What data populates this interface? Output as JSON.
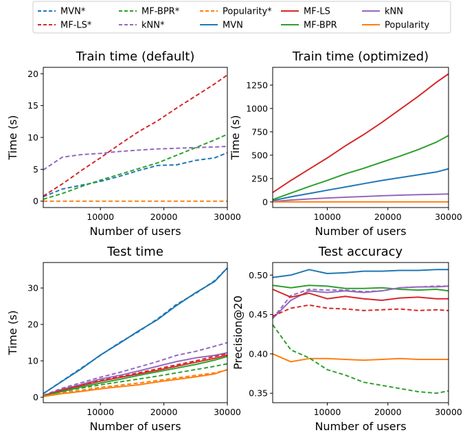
{
  "legend": {
    "placement": "top",
    "entries": [
      {
        "label": "MVN*",
        "color": "#1f77b4",
        "dash": true
      },
      {
        "label": "MF-BPR*",
        "color": "#2ca02c",
        "dash": true
      },
      {
        "label": "Popularity*",
        "color": "#ff7f0e",
        "dash": true
      },
      {
        "label": "MF-LS",
        "color": "#d62728",
        "dash": false
      },
      {
        "label": "kNN",
        "color": "#9467bd",
        "dash": false
      },
      {
        "label": "MF-LS*",
        "color": "#d62728",
        "dash": true
      },
      {
        "label": "kNN*",
        "color": "#9467bd",
        "dash": true
      },
      {
        "label": "MVN",
        "color": "#1f77b4",
        "dash": false
      },
      {
        "label": "MF-BPR",
        "color": "#2ca02c",
        "dash": false
      },
      {
        "label": "Popularity",
        "color": "#ff7f0e",
        "dash": false
      }
    ]
  },
  "chart_data": [
    {
      "type": "line",
      "title": "Train time (default)",
      "xlabel": "Number of users",
      "ylabel": "Time (s)",
      "xlim": [
        1000,
        30000
      ],
      "ylim": [
        -1,
        21
      ],
      "xticks": [
        10000,
        20000,
        30000
      ],
      "yticks": [
        0,
        5,
        10,
        15,
        20
      ],
      "x": [
        1000,
        4000,
        7000,
        10000,
        13000,
        16000,
        19000,
        22000,
        25000,
        28000,
        30000
      ],
      "series": [
        {
          "name": "MVN*",
          "color": "#1f77b4",
          "dash": true,
          "values": [
            0.7,
            1.9,
            2.5,
            3.1,
            3.9,
            4.8,
            5.6,
            5.7,
            6.4,
            6.8,
            7.6
          ]
        },
        {
          "name": "MF-LS*",
          "color": "#d62728",
          "dash": true,
          "values": [
            0.8,
            2.7,
            4.8,
            6.8,
            8.9,
            10.9,
            12.6,
            14.6,
            16.5,
            18.4,
            19.8
          ]
        },
        {
          "name": "MF-BPR*",
          "color": "#2ca02c",
          "dash": true,
          "values": [
            0.3,
            1.2,
            2.3,
            3.3,
            4.2,
            5.1,
            6.0,
            7.2,
            8.4,
            9.6,
            10.5
          ]
        },
        {
          "name": "kNN*",
          "color": "#9467bd",
          "dash": true,
          "values": [
            4.9,
            6.9,
            7.3,
            7.5,
            7.8,
            8.0,
            8.2,
            8.3,
            8.4,
            8.5,
            8.6
          ]
        },
        {
          "name": "Popularity*",
          "color": "#ff7f0e",
          "dash": true,
          "values": [
            0,
            0,
            0,
            0,
            0,
            0,
            0,
            0,
            0,
            0,
            0
          ]
        }
      ]
    },
    {
      "type": "line",
      "title": "Train time (optimized)",
      "xlabel": "Number of users",
      "ylabel": "Time (s)",
      "xlim": [
        1000,
        30000
      ],
      "ylim": [
        -60,
        1440
      ],
      "xticks": [
        10000,
        20000,
        30000
      ],
      "yticks": [
        0,
        250,
        500,
        750,
        1000,
        1250
      ],
      "x": [
        1000,
        4000,
        7000,
        10000,
        13000,
        16000,
        19000,
        22000,
        25000,
        28000,
        30000
      ],
      "series": [
        {
          "name": "MF-LS",
          "color": "#d62728",
          "dash": false,
          "values": [
            100,
            230,
            350,
            470,
            600,
            720,
            850,
            990,
            1130,
            1280,
            1370
          ]
        },
        {
          "name": "MF-BPR",
          "color": "#2ca02c",
          "dash": false,
          "values": [
            25,
            95,
            165,
            230,
            300,
            360,
            425,
            490,
            560,
            640,
            710
          ]
        },
        {
          "name": "MVN",
          "color": "#1f77b4",
          "dash": false,
          "values": [
            15,
            55,
            90,
            125,
            160,
            195,
            230,
            260,
            290,
            320,
            355
          ]
        },
        {
          "name": "kNN",
          "color": "#9467bd",
          "dash": false,
          "values": [
            5,
            20,
            32,
            42,
            50,
            58,
            66,
            72,
            78,
            82,
            85
          ]
        },
        {
          "name": "Popularity",
          "color": "#ff7f0e",
          "dash": false,
          "values": [
            0,
            0,
            0,
            0,
            0,
            0,
            0,
            0,
            0,
            0,
            0
          ]
        }
      ]
    },
    {
      "type": "line",
      "title": "Test time",
      "xlabel": "Number of users",
      "ylabel": "Time (s)",
      "xlim": [
        1000,
        30000
      ],
      "ylim": [
        -1.5,
        37
      ],
      "xticks": [
        10000,
        20000,
        30000
      ],
      "yticks": [
        0,
        10,
        20,
        30
      ],
      "x": [
        1000,
        4000,
        7000,
        10000,
        13000,
        16000,
        19000,
        22000,
        25000,
        28000,
        30000
      ],
      "series": [
        {
          "name": "MVN*",
          "color": "#1f77b4",
          "dash": true,
          "values": [
            1.0,
            4.5,
            8.0,
            11.5,
            15.0,
            18.0,
            21.5,
            25.5,
            28.5,
            32.0,
            35.5
          ]
        },
        {
          "name": "MVN",
          "color": "#1f77b4",
          "dash": false,
          "values": [
            1.0,
            4.4,
            7.8,
            11.6,
            14.8,
            18.2,
            21.3,
            25.2,
            28.7,
            31.8,
            35.5
          ]
        },
        {
          "name": "kNN*",
          "color": "#9467bd",
          "dash": true,
          "values": [
            0.5,
            2.5,
            4.0,
            5.5,
            6.8,
            8.3,
            9.8,
            11.5,
            12.6,
            14.0,
            15.0
          ]
        },
        {
          "name": "kNN",
          "color": "#9467bd",
          "dash": false,
          "values": [
            0.4,
            2.2,
            3.5,
            5.0,
            6.0,
            7.2,
            8.5,
            9.8,
            10.8,
            11.5,
            12.2
          ]
        },
        {
          "name": "MF-LS*",
          "color": "#d62728",
          "dash": true,
          "values": [
            0.4,
            2.0,
            3.3,
            4.6,
            5.6,
            6.7,
            7.8,
            8.9,
            10.0,
            11.2,
            12.0
          ]
        },
        {
          "name": "MF-LS",
          "color": "#d62728",
          "dash": false,
          "values": [
            0.4,
            1.9,
            3.2,
            4.4,
            5.4,
            6.4,
            7.4,
            8.5,
            9.6,
            10.7,
            11.6
          ]
        },
        {
          "name": "MF-BPR",
          "color": "#2ca02c",
          "dash": false,
          "values": [
            0.3,
            1.6,
            2.8,
            3.9,
            4.9,
            6.0,
            7.0,
            8.0,
            9.0,
            10.2,
            11.2
          ]
        },
        {
          "name": "MF-BPR*",
          "color": "#2ca02c",
          "dash": true,
          "values": [
            0.3,
            1.5,
            2.5,
            3.4,
            4.2,
            5.0,
            5.8,
            6.7,
            7.6,
            8.5,
            9.2
          ]
        },
        {
          "name": "Popularity*",
          "color": "#ff7f0e",
          "dash": true,
          "values": [
            0.2,
            1.2,
            1.9,
            2.7,
            3.3,
            3.9,
            4.6,
            5.3,
            6.0,
            6.7,
            7.5
          ]
        },
        {
          "name": "Popularity",
          "color": "#ff7f0e",
          "dash": false,
          "values": [
            0.2,
            1.0,
            1.6,
            2.3,
            2.9,
            3.4,
            4.2,
            4.9,
            5.6,
            6.4,
            7.6
          ]
        }
      ]
    },
    {
      "type": "line",
      "title": "Test accuracy",
      "xlabel": "Number of users",
      "ylabel": "Precision@20",
      "xlim": [
        1000,
        30000
      ],
      "ylim": [
        0.338,
        0.516
      ],
      "xticks": [
        10000,
        20000,
        30000
      ],
      "yticks": [
        0.35,
        0.4,
        0.45,
        0.5
      ],
      "x": [
        1000,
        4000,
        7000,
        10000,
        13000,
        16000,
        19000,
        22000,
        25000,
        28000,
        30000
      ],
      "series": [
        {
          "name": "MVN",
          "color": "#1f77b4",
          "dash": false,
          "values": [
            0.497,
            0.5,
            0.507,
            0.502,
            0.503,
            0.505,
            0.505,
            0.506,
            0.506,
            0.507,
            0.507
          ]
        },
        {
          "name": "MF-BPR",
          "color": "#2ca02c",
          "dash": false,
          "values": [
            0.487,
            0.484,
            0.487,
            0.486,
            0.483,
            0.483,
            0.484,
            0.482,
            0.481,
            0.482,
            0.48
          ]
        },
        {
          "name": "kNN",
          "color": "#9467bd",
          "dash": false,
          "values": [
            0.445,
            0.468,
            0.48,
            0.478,
            0.48,
            0.478,
            0.48,
            0.484,
            0.485,
            0.485,
            0.486
          ]
        },
        {
          "name": "kNN*",
          "color": "#9467bd",
          "dash": true,
          "values": [
            0.445,
            0.474,
            0.482,
            0.481,
            0.481,
            0.479,
            0.48,
            0.484,
            0.485,
            0.486,
            0.486
          ]
        },
        {
          "name": "MF-LS",
          "color": "#d62728",
          "dash": false,
          "values": [
            0.482,
            0.472,
            0.477,
            0.47,
            0.473,
            0.47,
            0.468,
            0.471,
            0.472,
            0.47,
            0.47
          ]
        },
        {
          "name": "MF-LS*",
          "color": "#d62728",
          "dash": true,
          "values": [
            0.448,
            0.458,
            0.462,
            0.458,
            0.457,
            0.455,
            0.456,
            0.457,
            0.455,
            0.456,
            0.455
          ]
        },
        {
          "name": "Popularity",
          "color": "#ff7f0e",
          "dash": false,
          "values": [
            0.4,
            0.39,
            0.394,
            0.394,
            0.393,
            0.392,
            0.393,
            0.394,
            0.393,
            0.393,
            0.393
          ]
        },
        {
          "name": "MF-BPR*",
          "color": "#2ca02c",
          "dash": true,
          "values": [
            0.437,
            0.405,
            0.395,
            0.38,
            0.373,
            0.364,
            0.36,
            0.356,
            0.352,
            0.35,
            0.353
          ]
        }
      ]
    }
  ]
}
